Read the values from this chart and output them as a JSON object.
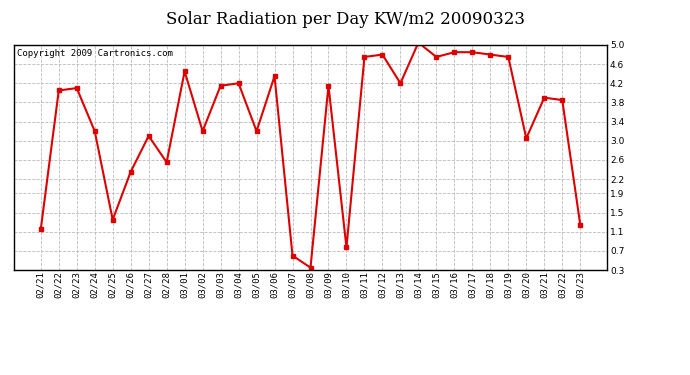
{
  "title": "Solar Radiation per Day KW/m2 20090323",
  "copyright_text": "Copyright 2009 Cartronics.com",
  "labels": [
    "02/21",
    "02/22",
    "02/23",
    "02/24",
    "02/25",
    "02/26",
    "02/27",
    "02/28",
    "03/01",
    "03/02",
    "03/03",
    "03/04",
    "03/05",
    "03/06",
    "03/07",
    "03/08",
    "03/09",
    "03/10",
    "03/11",
    "03/12",
    "03/13",
    "03/14",
    "03/15",
    "03/16",
    "03/17",
    "03/18",
    "03/19",
    "03/20",
    "03/21",
    "03/22",
    "03/23"
  ],
  "values": [
    1.15,
    4.05,
    4.1,
    3.2,
    1.35,
    2.35,
    3.1,
    2.55,
    4.45,
    3.2,
    4.15,
    4.2,
    3.2,
    4.35,
    0.6,
    0.35,
    4.15,
    0.77,
    4.75,
    4.8,
    4.2,
    5.05,
    4.75,
    4.85,
    4.85,
    4.8,
    4.75,
    3.05,
    3.9,
    3.85,
    1.25
  ],
  "line_color": "#dd0000",
  "marker": "s",
  "marker_size": 2.5,
  "line_width": 1.5,
  "ylim": [
    0.3,
    5.0
  ],
  "yticks": [
    0.3,
    0.7,
    1.1,
    1.5,
    1.9,
    2.2,
    2.6,
    3.0,
    3.4,
    3.8,
    4.2,
    4.6,
    5.0
  ],
  "background_color": "#ffffff",
  "plot_bg_color": "#ffffff",
  "grid_color": "#bbbbbb",
  "title_fontsize": 12,
  "tick_fontsize": 6.5,
  "copyright_fontsize": 6.5
}
